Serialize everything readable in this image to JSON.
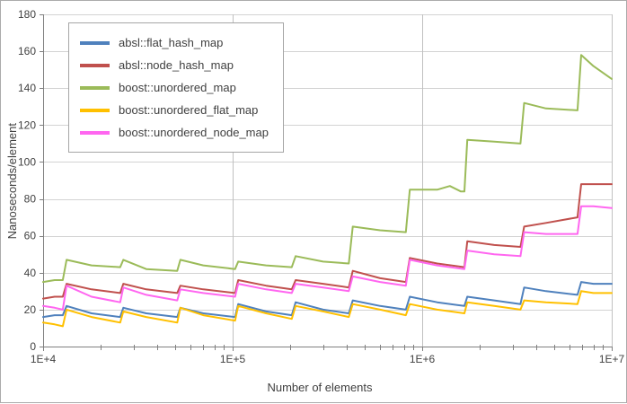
{
  "chart_data": {
    "type": "line",
    "title": "",
    "xlabel": "Number of elements",
    "ylabel": "Nanoseconds/element",
    "x_scale": "log",
    "xlim": [
      10000,
      10000000
    ],
    "ylim": [
      0,
      180
    ],
    "y_ticks": [
      0,
      20,
      40,
      60,
      80,
      100,
      120,
      140,
      160,
      180
    ],
    "x_ticks": [
      {
        "value": 10000,
        "label": "1E+4"
      },
      {
        "value": 100000,
        "label": "1E+5"
      },
      {
        "value": 1000000,
        "label": "1E+6"
      },
      {
        "value": 10000000,
        "label": "1E+7"
      }
    ],
    "grid": {
      "horizontal": true,
      "vertical_at_decades": true,
      "minor_x_ticks": true
    },
    "legend_position": "top-left",
    "colors": {
      "grid": "#d3d3d3",
      "decade_grid": "#c0c0c0",
      "axis": "#808080",
      "text": "#404040",
      "frame": "#ababab"
    },
    "series": [
      {
        "name": "absl::flat_hash_map",
        "color": "#4F81BD",
        "points": [
          [
            10000,
            16
          ],
          [
            11500,
            17
          ],
          [
            12700,
            17
          ],
          [
            13300,
            22
          ],
          [
            18000,
            18
          ],
          [
            25500,
            16
          ],
          [
            26500,
            21
          ],
          [
            35000,
            18
          ],
          [
            51000,
            16
          ],
          [
            53000,
            21
          ],
          [
            70000,
            18
          ],
          [
            103000,
            16
          ],
          [
            107000,
            23
          ],
          [
            150000,
            19
          ],
          [
            205000,
            17
          ],
          [
            215000,
            24
          ],
          [
            300000,
            20
          ],
          [
            410000,
            18
          ],
          [
            430000,
            25
          ],
          [
            600000,
            22
          ],
          [
            820000,
            20
          ],
          [
            860000,
            27
          ],
          [
            1200000,
            24
          ],
          [
            1670000,
            22
          ],
          [
            1730000,
            27
          ],
          [
            2400000,
            25
          ],
          [
            3300000,
            23
          ],
          [
            3450000,
            32
          ],
          [
            4500000,
            30
          ],
          [
            6600000,
            28
          ],
          [
            6900000,
            35
          ],
          [
            8000000,
            34
          ],
          [
            10000000,
            34
          ]
        ]
      },
      {
        "name": "absl::node_hash_map",
        "color": "#C0504D",
        "points": [
          [
            10000,
            26
          ],
          [
            11500,
            27
          ],
          [
            12700,
            27
          ],
          [
            13300,
            34
          ],
          [
            18000,
            31
          ],
          [
            25500,
            29
          ],
          [
            26500,
            34
          ],
          [
            35000,
            31
          ],
          [
            51000,
            29
          ],
          [
            53000,
            33
          ],
          [
            70000,
            31
          ],
          [
            103000,
            29
          ],
          [
            107000,
            36
          ],
          [
            150000,
            33
          ],
          [
            205000,
            31
          ],
          [
            215000,
            36
          ],
          [
            300000,
            34
          ],
          [
            410000,
            32
          ],
          [
            430000,
            41
          ],
          [
            600000,
            37
          ],
          [
            820000,
            35
          ],
          [
            860000,
            48
          ],
          [
            1200000,
            45
          ],
          [
            1670000,
            43
          ],
          [
            1730000,
            57
          ],
          [
            2400000,
            55
          ],
          [
            3300000,
            54
          ],
          [
            3450000,
            65
          ],
          [
            4500000,
            67
          ],
          [
            6600000,
            70
          ],
          [
            6900000,
            88
          ],
          [
            8000000,
            88
          ],
          [
            10000000,
            88
          ]
        ]
      },
      {
        "name": "boost::unordered_map",
        "color": "#9BBB59",
        "points": [
          [
            10000,
            35
          ],
          [
            11500,
            36
          ],
          [
            12700,
            36
          ],
          [
            13300,
            47
          ],
          [
            18000,
            44
          ],
          [
            25500,
            43
          ],
          [
            26500,
            47
          ],
          [
            35000,
            42
          ],
          [
            51000,
            41
          ],
          [
            53000,
            47
          ],
          [
            70000,
            44
          ],
          [
            103000,
            42
          ],
          [
            107000,
            46
          ],
          [
            150000,
            44
          ],
          [
            205000,
            43
          ],
          [
            215000,
            49
          ],
          [
            300000,
            46
          ],
          [
            410000,
            45
          ],
          [
            430000,
            65
          ],
          [
            600000,
            63
          ],
          [
            820000,
            62
          ],
          [
            860000,
            85
          ],
          [
            1200000,
            85
          ],
          [
            1400000,
            87
          ],
          [
            1600000,
            84
          ],
          [
            1670000,
            84
          ],
          [
            1730000,
            112
          ],
          [
            2400000,
            111
          ],
          [
            3300000,
            110
          ],
          [
            3450000,
            132
          ],
          [
            4500000,
            129
          ],
          [
            6600000,
            128
          ],
          [
            6900000,
            158
          ],
          [
            8000000,
            152
          ],
          [
            10000000,
            145
          ]
        ]
      },
      {
        "name": "boost::unordered_flat_map",
        "color": "#FFC000",
        "points": [
          [
            10000,
            13
          ],
          [
            11500,
            12
          ],
          [
            12700,
            11
          ],
          [
            13300,
            20
          ],
          [
            18000,
            16
          ],
          [
            25500,
            13
          ],
          [
            26500,
            19
          ],
          [
            35000,
            16
          ],
          [
            51000,
            13
          ],
          [
            53000,
            21
          ],
          [
            70000,
            17
          ],
          [
            103000,
            14
          ],
          [
            107000,
            22
          ],
          [
            150000,
            18
          ],
          [
            205000,
            15
          ],
          [
            215000,
            22
          ],
          [
            300000,
            19
          ],
          [
            410000,
            16
          ],
          [
            430000,
            23
          ],
          [
            600000,
            20
          ],
          [
            820000,
            17
          ],
          [
            860000,
            23
          ],
          [
            1200000,
            20
          ],
          [
            1670000,
            18
          ],
          [
            1730000,
            24
          ],
          [
            2400000,
            22
          ],
          [
            3300000,
            20
          ],
          [
            3450000,
            25
          ],
          [
            4500000,
            24
          ],
          [
            6600000,
            23
          ],
          [
            6900000,
            30
          ],
          [
            8000000,
            29
          ],
          [
            10000000,
            29
          ]
        ]
      },
      {
        "name": "boost::unordered_node_map",
        "color": "#FF66F0",
        "points": [
          [
            10000,
            22
          ],
          [
            11500,
            21
          ],
          [
            12700,
            20
          ],
          [
            13300,
            33
          ],
          [
            18000,
            27
          ],
          [
            25500,
            24
          ],
          [
            26500,
            32
          ],
          [
            35000,
            28
          ],
          [
            51000,
            25
          ],
          [
            53000,
            31
          ],
          [
            70000,
            29
          ],
          [
            103000,
            27
          ],
          [
            107000,
            34
          ],
          [
            150000,
            31
          ],
          [
            205000,
            29
          ],
          [
            215000,
            34
          ],
          [
            300000,
            32
          ],
          [
            410000,
            30
          ],
          [
            430000,
            38
          ],
          [
            600000,
            35
          ],
          [
            820000,
            33
          ],
          [
            860000,
            47
          ],
          [
            1200000,
            44
          ],
          [
            1670000,
            42
          ],
          [
            1730000,
            52
          ],
          [
            2400000,
            50
          ],
          [
            3300000,
            49
          ],
          [
            3450000,
            62
          ],
          [
            4500000,
            61
          ],
          [
            6600000,
            61
          ],
          [
            6900000,
            76
          ],
          [
            8000000,
            76
          ],
          [
            10000000,
            75
          ]
        ]
      }
    ]
  }
}
